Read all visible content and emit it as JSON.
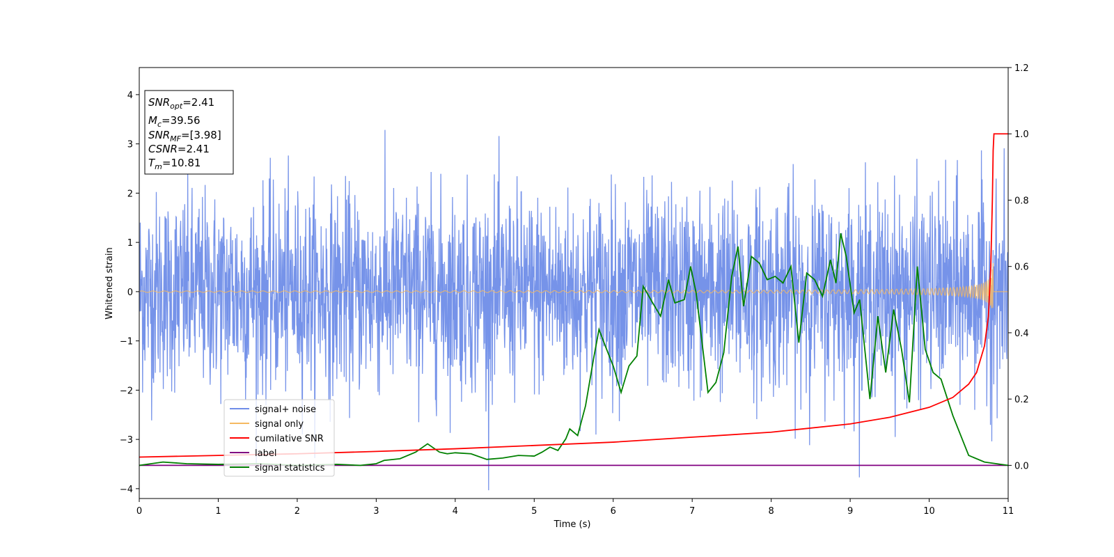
{
  "chart_data": {
    "type": "line",
    "xlabel": "Time (s)",
    "ylabel": "Whitened strain",
    "xlim": [
      0,
      11
    ],
    "ylim_left": [
      -4.2,
      4.55
    ],
    "ylim_right": [
      -0.1,
      1.2
    ],
    "x_ticks": [
      0,
      1,
      2,
      3,
      4,
      5,
      6,
      7,
      8,
      9,
      10,
      11
    ],
    "y_ticks_left": [
      "−4",
      "−3",
      "−2",
      "−1",
      "0",
      "1",
      "2",
      "3",
      "4"
    ],
    "y_ticks_right": [
      "0.0",
      "0.2",
      "0.4",
      "0.6",
      "0.8",
      "1.0",
      "1.2"
    ],
    "annotation": {
      "snr_opt": "=2.41",
      "mc": "=39.56",
      "snr_mf": "=[3.98]",
      "csnr": "=2.41",
      "tm": "=10.81"
    },
    "legend": {
      "position": "lower-left",
      "entries": [
        {
          "label": "signal+ noise",
          "color": "#6f8de8"
        },
        {
          "label": "signal only",
          "color": "#f5b961"
        },
        {
          "label": "cumilative SNR",
          "color": "#ff0000"
        },
        {
          "label": "label",
          "color": "#800080"
        },
        {
          "label": "signal statistics",
          "color": "#008000"
        }
      ]
    },
    "series": [
      {
        "name": "signal+ noise",
        "axis": "left",
        "color": "#6f8de8",
        "description_noise": {
          "sigma": 1.0,
          "duration": 11
        }
      },
      {
        "name": "signal only",
        "axis": "left",
        "color": "#f5b961",
        "chirp": {
          "merger_time": 10.81,
          "peak_amplitude": 0.6
        }
      },
      {
        "name": "cumilative SNR",
        "axis": "right",
        "color": "#ff0000",
        "x": [
          0,
          1,
          2,
          3,
          4,
          5,
          6,
          7,
          8,
          9,
          9.5,
          10,
          10.3,
          10.5,
          10.6,
          10.7,
          10.75,
          10.78,
          10.8,
          10.81,
          10.82,
          10.85,
          11
        ],
        "y": [
          0.025,
          0.03,
          0.035,
          0.042,
          0.05,
          0.06,
          0.07,
          0.085,
          0.1,
          0.125,
          0.145,
          0.175,
          0.205,
          0.245,
          0.28,
          0.36,
          0.45,
          0.6,
          0.8,
          0.95,
          1.0,
          1.0,
          1.0
        ]
      },
      {
        "name": "label",
        "axis": "right",
        "color": "#800080",
        "x": [
          0,
          11
        ],
        "y": [
          0,
          0
        ]
      },
      {
        "name": "signal statistics",
        "axis": "right",
        "color": "#008000",
        "x": [
          0,
          0.3,
          0.6,
          1.0,
          1.5,
          2.0,
          2.5,
          2.8,
          3.0,
          3.1,
          3.3,
          3.5,
          3.65,
          3.8,
          3.9,
          4.0,
          4.2,
          4.4,
          4.6,
          4.8,
          5.0,
          5.1,
          5.2,
          5.3,
          5.4,
          5.45,
          5.55,
          5.65,
          5.75,
          5.82,
          5.9,
          6.0,
          6.1,
          6.2,
          6.3,
          6.38,
          6.5,
          6.6,
          6.7,
          6.78,
          6.9,
          6.98,
          7.05,
          7.12,
          7.2,
          7.3,
          7.4,
          7.5,
          7.58,
          7.65,
          7.75,
          7.85,
          7.95,
          8.05,
          8.15,
          8.25,
          8.35,
          8.45,
          8.55,
          8.65,
          8.75,
          8.82,
          8.88,
          8.95,
          9.05,
          9.12,
          9.25,
          9.35,
          9.45,
          9.55,
          9.65,
          9.75,
          9.85,
          9.95,
          10.05,
          10.15,
          10.3,
          10.5,
          10.7,
          11.0
        ],
        "y": [
          0.0,
          0.01,
          0.005,
          0.003,
          0.005,
          0.0,
          0.003,
          0.0,
          0.005,
          0.015,
          0.02,
          0.04,
          0.065,
          0.04,
          0.035,
          0.038,
          0.035,
          0.018,
          0.022,
          0.03,
          0.028,
          0.04,
          0.055,
          0.045,
          0.08,
          0.11,
          0.09,
          0.18,
          0.32,
          0.41,
          0.36,
          0.3,
          0.22,
          0.3,
          0.33,
          0.54,
          0.49,
          0.45,
          0.56,
          0.49,
          0.5,
          0.6,
          0.52,
          0.38,
          0.22,
          0.25,
          0.34,
          0.57,
          0.66,
          0.48,
          0.63,
          0.61,
          0.56,
          0.57,
          0.55,
          0.6,
          0.37,
          0.58,
          0.56,
          0.51,
          0.62,
          0.55,
          0.7,
          0.63,
          0.46,
          0.5,
          0.2,
          0.45,
          0.28,
          0.47,
          0.35,
          0.19,
          0.6,
          0.35,
          0.28,
          0.26,
          0.15,
          0.03,
          0.01,
          0.0
        ]
      }
    ]
  }
}
